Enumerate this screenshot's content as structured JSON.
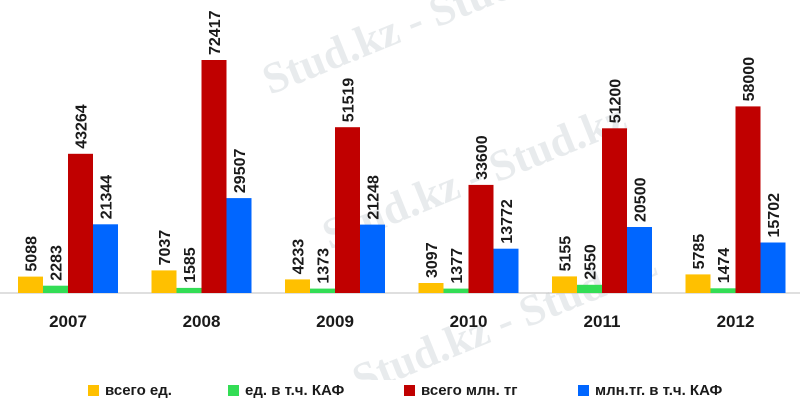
{
  "chart_data": {
    "type": "bar",
    "categories": [
      "2007",
      "2008",
      "2009",
      "2010",
      "2011",
      "2012"
    ],
    "series": [
      {
        "name": "всего ед.",
        "color": "#ffc000",
        "values": [
          5088,
          7037,
          4233,
          3097,
          5155,
          5785
        ]
      },
      {
        "name": "ед. в т.ч. КАФ",
        "color": "#33dd55",
        "values": [
          2283,
          1585,
          1373,
          1377,
          2550,
          1474
        ]
      },
      {
        "name": "всего млн. тг",
        "color": "#c00000",
        "values": [
          43264,
          72417,
          51519,
          33600,
          51200,
          58000
        ]
      },
      {
        "name": "млн.тг. в т.ч. КАФ",
        "color": "#0066ff",
        "values": [
          21344,
          29507,
          21248,
          13772,
          20500,
          15702
        ]
      }
    ],
    "xlabel": "",
    "ylabel": "",
    "ylim": [
      0,
      72417
    ],
    "grid": false,
    "legend": "bottom"
  },
  "watermark": "Stud.kz - Stud.kz"
}
